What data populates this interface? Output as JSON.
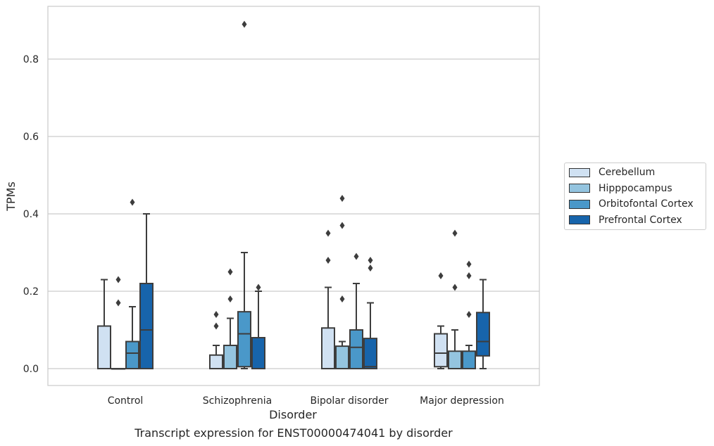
{
  "chart_data": {
    "type": "box",
    "title": "",
    "xlabel": "Disorder",
    "ylabel": "TPMs",
    "caption": "Transcript expression for ENST00000474041 by disorder",
    "ylim": [
      -0.043,
      0.935
    ],
    "yticks": [
      0.0,
      0.2,
      0.4,
      0.6,
      0.8
    ],
    "ytick_labels": [
      "0.0",
      "0.2",
      "0.4",
      "0.6",
      "0.8"
    ],
    "grid": "horizontal",
    "legend_position": "right",
    "categories": [
      "Control",
      "Schizophrenia",
      "Bipolar disorder",
      "Major depression"
    ],
    "series": [
      {
        "name": "Cerebellum",
        "color": "#d0e1f2",
        "boxes": [
          {
            "q1": 0.0,
            "median": 0.0,
            "q3": 0.11,
            "whisker_low": 0.0,
            "whisker_high": 0.23,
            "outliers": []
          },
          {
            "q1": 0.0,
            "median": 0.0,
            "q3": 0.035,
            "whisker_low": 0.0,
            "whisker_high": 0.06,
            "outliers": [
              0.11,
              0.14
            ]
          },
          {
            "q1": 0.0,
            "median": 0.0,
            "q3": 0.105,
            "whisker_low": 0.0,
            "whisker_high": 0.21,
            "outliers": [
              0.28,
              0.35
            ]
          },
          {
            "q1": 0.005,
            "median": 0.04,
            "q3": 0.09,
            "whisker_low": 0.0,
            "whisker_high": 0.11,
            "outliers": [
              0.24
            ]
          }
        ]
      },
      {
        "name": "Hipppocampus",
        "color": "#94c4df",
        "boxes": [
          {
            "q1": 0.0,
            "median": 0.0,
            "q3": 0.0,
            "whisker_low": 0.0,
            "whisker_high": 0.0,
            "outliers": [
              0.17,
              0.23
            ]
          },
          {
            "q1": 0.0,
            "median": 0.0,
            "q3": 0.06,
            "whisker_low": 0.0,
            "whisker_high": 0.13,
            "outliers": [
              0.18,
              0.25
            ]
          },
          {
            "q1": 0.0,
            "median": 0.0,
            "q3": 0.058,
            "whisker_low": 0.0,
            "whisker_high": 0.07,
            "outliers": [
              0.18,
              0.37,
              0.44
            ]
          },
          {
            "q1": 0.0,
            "median": 0.0,
            "q3": 0.045,
            "whisker_low": 0.0,
            "whisker_high": 0.1,
            "outliers": [
              0.21,
              0.35
            ]
          }
        ]
      },
      {
        "name": "Orbitofontal Cortex",
        "color": "#4a98c9",
        "boxes": [
          {
            "q1": 0.0,
            "median": 0.04,
            "q3": 0.07,
            "whisker_low": 0.0,
            "whisker_high": 0.16,
            "outliers": [
              0.43
            ]
          },
          {
            "q1": 0.005,
            "median": 0.09,
            "q3": 0.147,
            "whisker_low": 0.0,
            "whisker_high": 0.3,
            "outliers": [
              0.89
            ]
          },
          {
            "q1": 0.0,
            "median": 0.055,
            "q3": 0.1,
            "whisker_low": 0.0,
            "whisker_high": 0.22,
            "outliers": [
              0.29
            ]
          },
          {
            "q1": 0.0,
            "median": 0.0,
            "q3": 0.045,
            "whisker_low": 0.0,
            "whisker_high": 0.06,
            "outliers": [
              0.14,
              0.24,
              0.27
            ]
          }
        ]
      },
      {
        "name": "Prefrontal Cortex",
        "color": "#1764ab",
        "boxes": [
          {
            "q1": 0.0,
            "median": 0.1,
            "q3": 0.22,
            "whisker_low": 0.0,
            "whisker_high": 0.4,
            "outliers": []
          },
          {
            "q1": 0.0,
            "median": 0.0,
            "q3": 0.08,
            "whisker_low": 0.0,
            "whisker_high": 0.2,
            "outliers": [
              0.21
            ]
          },
          {
            "q1": 0.0,
            "median": 0.005,
            "q3": 0.078,
            "whisker_low": 0.0,
            "whisker_high": 0.17,
            "outliers": [
              0.26,
              0.28
            ]
          },
          {
            "q1": 0.033,
            "median": 0.07,
            "q3": 0.145,
            "whisker_low": 0.0,
            "whisker_high": 0.23,
            "outliers": []
          }
        ]
      }
    ]
  }
}
